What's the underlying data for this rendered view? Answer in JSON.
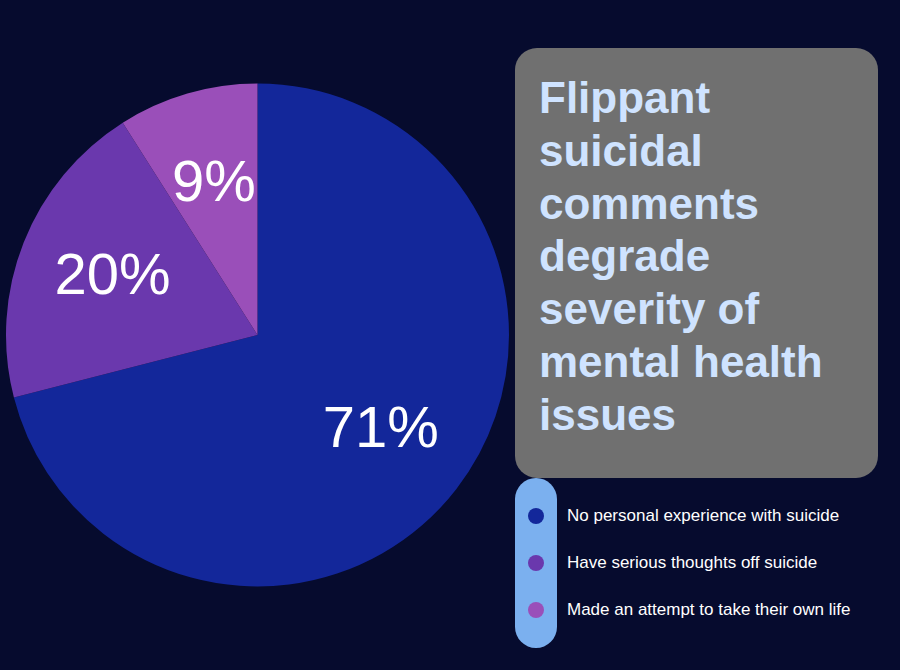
{
  "chart_data": {
    "type": "pie",
    "title": "Flippant suicidal comments degrade severity of mental health issues",
    "categories": [
      "No personal experience with suicide",
      "Have serious thoughts off suicide",
      "Made an attempt to take their own life"
    ],
    "values": [
      71,
      20,
      9
    ],
    "value_labels": [
      "71%",
      "20%",
      "9%"
    ],
    "colors": [
      "#13279a",
      "#6a38ad",
      "#9a4fb9"
    ],
    "data_labels": true,
    "legend": "lower right"
  }
}
